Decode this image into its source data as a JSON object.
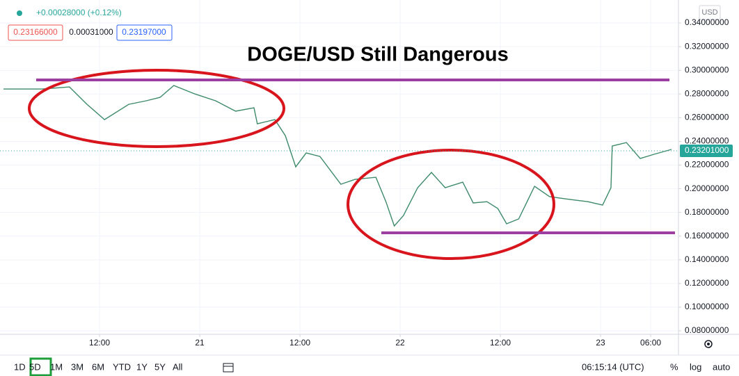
{
  "chart_data": {
    "type": "line",
    "title": "DOGE/USD Still Dangerous",
    "header": {
      "change": "+0.00028000 (+0.12%)",
      "bid": "0.23166000",
      "spread": "0.00031000",
      "ask": "0.23197000"
    },
    "currency": "USD",
    "x": [
      0.5,
      5.1,
      8.4,
      10.5,
      12.6,
      15.5,
      17.6,
      19.25,
      20.9,
      23.4,
      25.9,
      28.3,
      30.5,
      30.9,
      33,
      34.25,
      35.5,
      36.75,
      38.4,
      40.9,
      42.6,
      45.1,
      46.3,
      47.3,
      48.4,
      50.1,
      51.75,
      53.4,
      55.5,
      56.75,
      58.4,
      59.7,
      60.75,
      62.2,
      64.1,
      65.9,
      68.4,
      70.5,
      72.25,
      73.25,
      73.4,
      75.1,
      76.75,
      78.4,
      80.5
    ],
    "values": [
      0.2842,
      0.2842,
      0.286,
      0.2713,
      0.2584,
      0.2713,
      0.2743,
      0.2772,
      0.2872,
      0.2801,
      0.2743,
      0.2655,
      0.2684,
      0.2549,
      0.2584,
      0.2449,
      0.2185,
      0.2302,
      0.2273,
      0.2038,
      0.2079,
      0.2097,
      0.1891,
      0.1686,
      0.1774,
      0.2009,
      0.2138,
      0.2009,
      0.2056,
      0.188,
      0.1891,
      0.1833,
      0.1704,
      0.1745,
      0.2021,
      0.1933,
      0.1909,
      0.1891,
      0.1862,
      0.2009,
      0.2361,
      0.239,
      0.2255,
      0.2291,
      0.2332
    ],
    "color": "#3d8a6a",
    "levels": [
      0.2919,
      0.1628
    ],
    "level_color": "#9c3fa0",
    "last_price": {
      "value": 0.23201,
      "label": "0.23201000"
    },
    "xlim": [
      0.08,
      81.33
    ],
    "ylim": [
      0.0771,
      0.3594
    ],
    "xticks": [
      {
        "value": 12,
        "label": "12:00"
      },
      {
        "value": 24,
        "label": "21"
      },
      {
        "value": 36,
        "label": "12:00"
      },
      {
        "value": 48,
        "label": "22"
      },
      {
        "value": 60,
        "label": "12:00"
      },
      {
        "value": 72,
        "label": "23"
      },
      {
        "value": 78,
        "label": "06:00"
      }
    ],
    "yticks": [
      {
        "value": 0.34,
        "label": "0.34000000"
      },
      {
        "value": 0.32,
        "label": "0.32000000"
      },
      {
        "value": 0.3,
        "label": "0.30000000"
      },
      {
        "value": 0.28,
        "label": "0.28000000"
      },
      {
        "value": 0.26,
        "label": "0.26000000"
      },
      {
        "value": 0.24,
        "label": "0.24000000"
      },
      {
        "value": 0.22,
        "label": "0.22000000"
      },
      {
        "value": 0.2,
        "label": "0.20000000"
      },
      {
        "value": 0.18,
        "label": "0.18000000"
      },
      {
        "value": 0.16,
        "label": "0.16000000"
      },
      {
        "value": 0.14,
        "label": "0.14000000"
      },
      {
        "value": 0.12,
        "label": "0.12000000"
      },
      {
        "value": 0.1,
        "label": "0.10000000"
      },
      {
        "value": 0.08,
        "label": "0.08000000"
      }
    ],
    "grid": true,
    "toolbar": {
      "ranges": [
        "1D",
        "5D",
        "1M",
        "3M",
        "6M",
        "YTD",
        "1Y",
        "5Y",
        "All"
      ],
      "clock": "06:15:14 (UTC)",
      "options": [
        "%",
        "log",
        "auto"
      ]
    }
  }
}
